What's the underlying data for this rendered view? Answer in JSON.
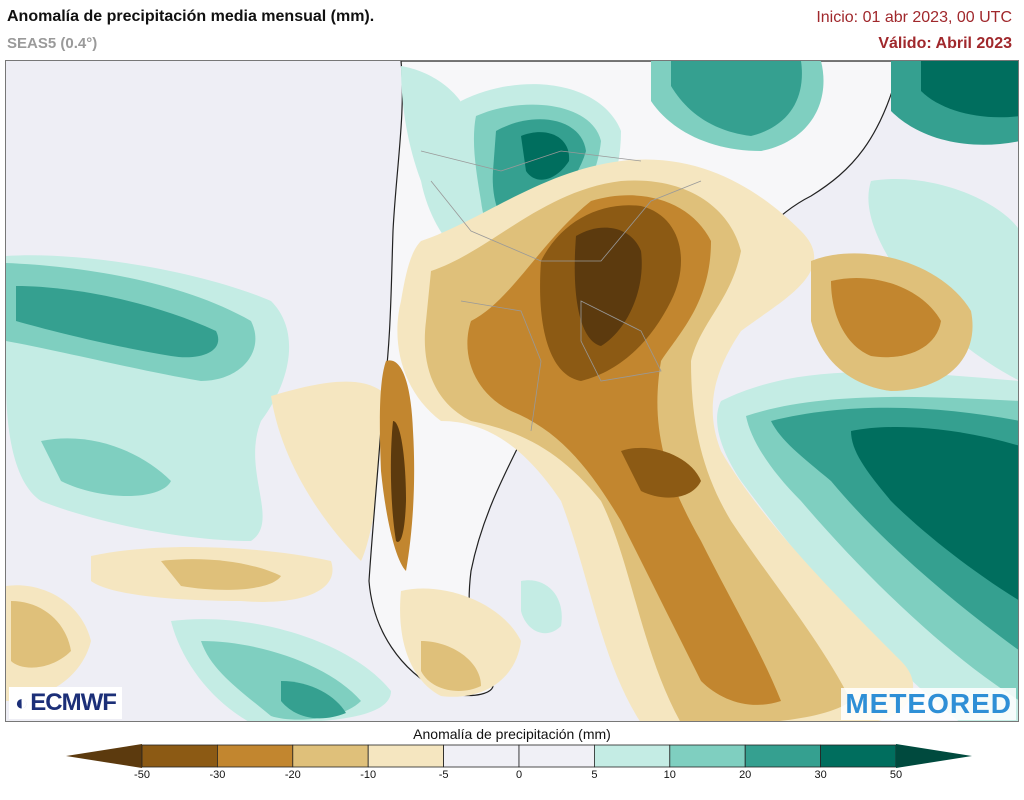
{
  "header": {
    "title": "Anomalía de precipitación media mensual (mm).",
    "subtitle": "SEAS5 (0.4°)",
    "init": "Inicio: 01 abr 2023, 00 UTC",
    "valid": "Válido: Abril 2023"
  },
  "logos": {
    "ecmwf": "ECMWF",
    "meteored": "METEORED"
  },
  "legend": {
    "title": "Anomalía de precipitación (mm)",
    "ticks": [
      "-50",
      "-30",
      "-20",
      "-10",
      "-5",
      "0",
      "5",
      "10",
      "20",
      "30",
      "50"
    ],
    "colors": [
      "#5c3a0e",
      "#8c5a14",
      "#c2862f",
      "#dfc07a",
      "#f5e6c0",
      "#f0f0f6",
      "#f0f0f6",
      "#c4ece4",
      "#7fcfc0",
      "#35a090",
      "#006e5e",
      "#004a3e"
    ]
  }
}
